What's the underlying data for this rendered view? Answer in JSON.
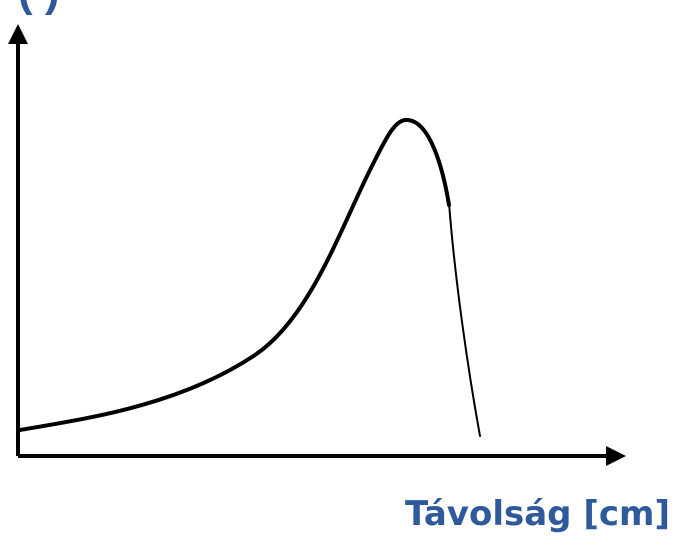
{
  "diagram": {
    "y_label_fragment": "(                   )",
    "x_label": "Távolság [cm]",
    "colors": {
      "axis": "#000000",
      "curve": "#000000",
      "label": "#2e5a9c"
    }
  }
}
